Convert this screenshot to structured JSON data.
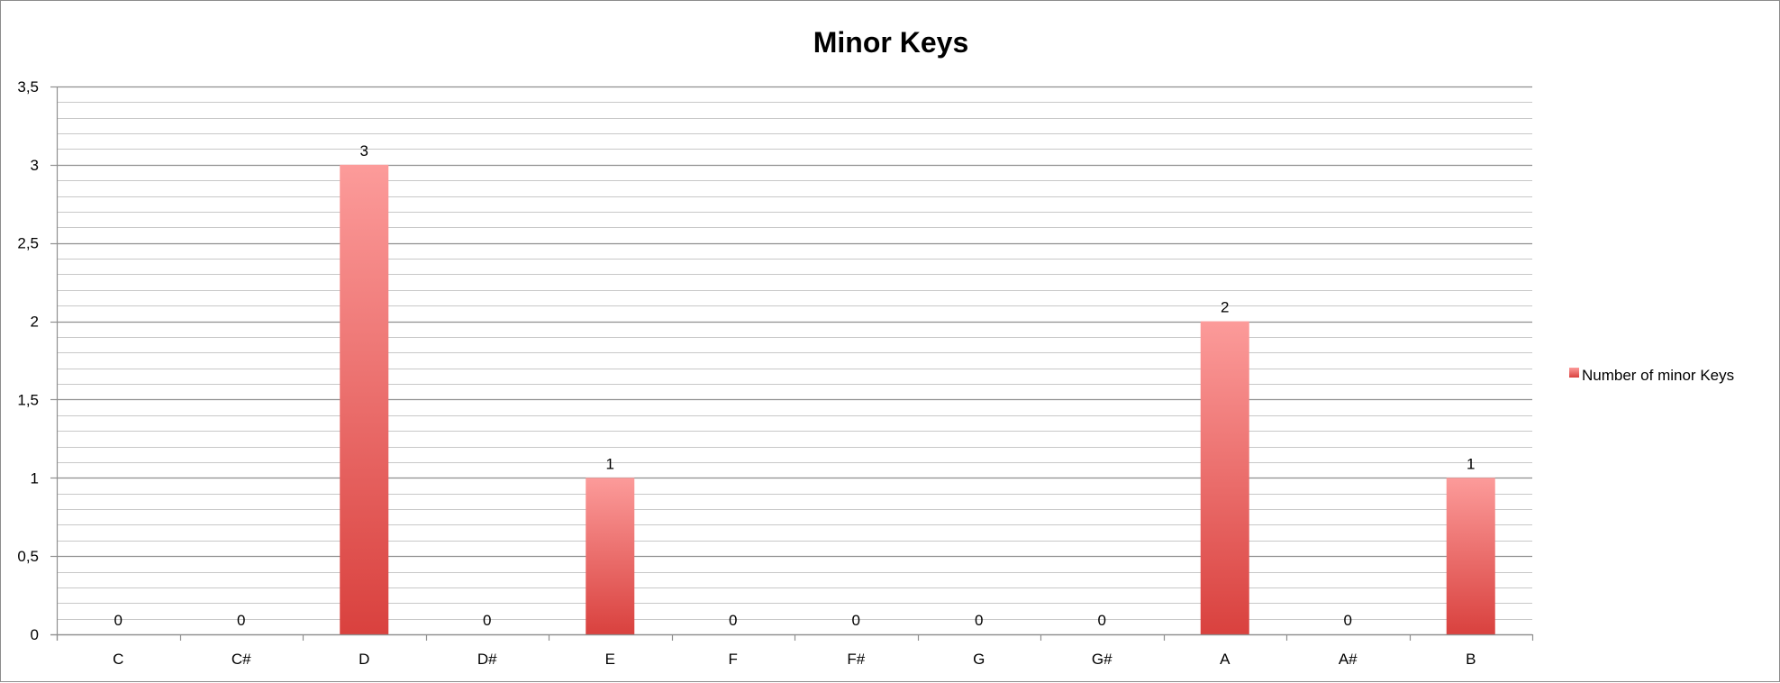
{
  "chart_data": {
    "type": "bar",
    "title": "Minor Keys",
    "xlabel": "",
    "ylabel": "",
    "categories": [
      "C",
      "C#",
      "D",
      "D#",
      "E",
      "F",
      "F#",
      "G",
      "G#",
      "A",
      "A#",
      "B"
    ],
    "series": [
      {
        "name": "Number of minor Keys",
        "values": [
          0,
          0,
          3,
          0,
          1,
          0,
          0,
          0,
          0,
          2,
          0,
          1
        ],
        "color": "#d9413e",
        "color_light": "#fc9b9a"
      }
    ],
    "ylim": [
      0,
      3.5
    ],
    "y_major_ticks": [
      0,
      0.5,
      1,
      1.5,
      2,
      2.5,
      3,
      3.5
    ],
    "y_tick_labels": [
      "0",
      "0,5",
      "1",
      "1,5",
      "2",
      "2,5",
      "3",
      "3,5"
    ],
    "y_minor_step": 0.1,
    "data_labels": true,
    "grid": true,
    "legend": "right",
    "colors": {
      "major_grid": "#8f8f8f",
      "minor_grid": "#c8c8c8",
      "axis": "#8f8f8f"
    }
  }
}
